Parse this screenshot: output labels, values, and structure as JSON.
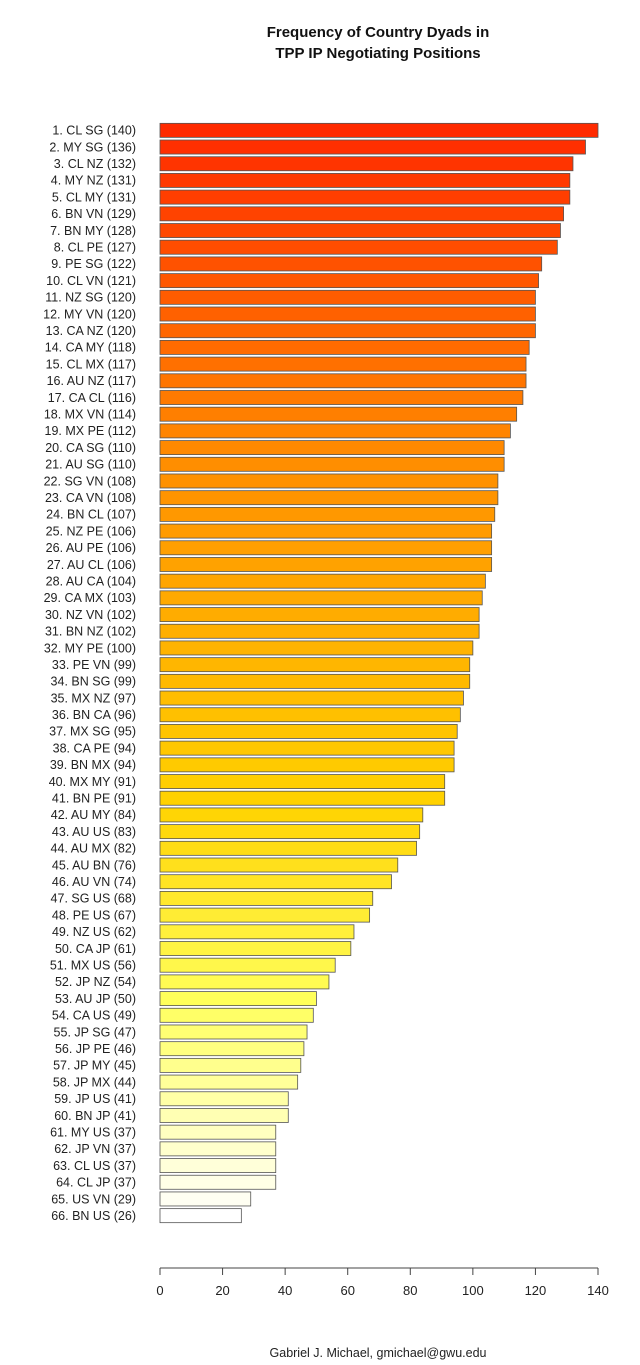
{
  "chart_data": {
    "type": "bar",
    "orientation": "horizontal",
    "title": "Frequency of Country Dyads in",
    "subtitle": "TPP IP Negotiating Positions",
    "xlabel": "",
    "ylabel": "",
    "xlim": [
      0,
      140
    ],
    "ticks": [
      0,
      20,
      40,
      60,
      80,
      100,
      120,
      140
    ],
    "grid": false,
    "color_gradient": {
      "high": "#ff2a00",
      "mid_high": "#ff8c00",
      "mid": "#ffd200",
      "low_mid": "#ffff5a",
      "low": "#ffffff"
    },
    "categories": [
      "1. CL SG (140)",
      "2. MY SG (136)",
      "3. CL NZ (132)",
      "4. MY NZ (131)",
      "5. CL MY (131)",
      "6. BN VN (129)",
      "7. BN MY (128)",
      "8. CL PE (127)",
      "9. PE SG (122)",
      "10. CL VN (121)",
      "11. NZ SG (120)",
      "12. MY VN (120)",
      "13. CA NZ (120)",
      "14. CA MY (118)",
      "15. CL MX (117)",
      "16. AU NZ (117)",
      "17. CA CL (116)",
      "18. MX VN (114)",
      "19. MX PE (112)",
      "20. CA SG (110)",
      "21. AU SG (110)",
      "22. SG VN (108)",
      "23. CA VN (108)",
      "24. BN CL (107)",
      "25. NZ PE (106)",
      "26. AU PE (106)",
      "27. AU CL (106)",
      "28. AU CA (104)",
      "29. CA MX (103)",
      "30. NZ VN (102)",
      "31. BN NZ (102)",
      "32. MY PE (100)",
      "33. PE VN (99)",
      "34. BN SG (99)",
      "35. MX NZ (97)",
      "36. BN CA (96)",
      "37. MX SG (95)",
      "38. CA PE (94)",
      "39. BN MX (94)",
      "40. MX MY (91)",
      "41. BN PE (91)",
      "42. AU MY (84)",
      "43. AU US (83)",
      "44. AU MX (82)",
      "45. AU BN (76)",
      "46. AU VN (74)",
      "47. SG US (68)",
      "48. PE US (67)",
      "49. NZ US (62)",
      "50. CA JP (61)",
      "51. MX US (56)",
      "52. JP NZ (54)",
      "53. AU JP (50)",
      "54. CA US (49)",
      "55. JP SG (47)",
      "56. JP PE (46)",
      "57. JP MY (45)",
      "58. JP MX (44)",
      "59. JP US (41)",
      "60. BN JP (41)",
      "61. MY US (37)",
      "62. JP VN (37)",
      "63. CL US (37)",
      "64. CL JP (37)",
      "65. US VN (29)",
      "66. BN US (26)"
    ],
    "values": [
      140,
      136,
      132,
      131,
      131,
      129,
      128,
      127,
      122,
      121,
      120,
      120,
      120,
      118,
      117,
      117,
      116,
      114,
      112,
      110,
      110,
      108,
      108,
      107,
      106,
      106,
      106,
      104,
      103,
      102,
      102,
      100,
      99,
      99,
      97,
      96,
      95,
      94,
      94,
      91,
      91,
      84,
      83,
      82,
      76,
      74,
      68,
      67,
      62,
      61,
      56,
      54,
      50,
      49,
      47,
      46,
      45,
      44,
      41,
      41,
      37,
      37,
      37,
      37,
      29,
      26
    ],
    "annotation": "Gabriel J. Michael, gmichael@gwu.edu"
  }
}
